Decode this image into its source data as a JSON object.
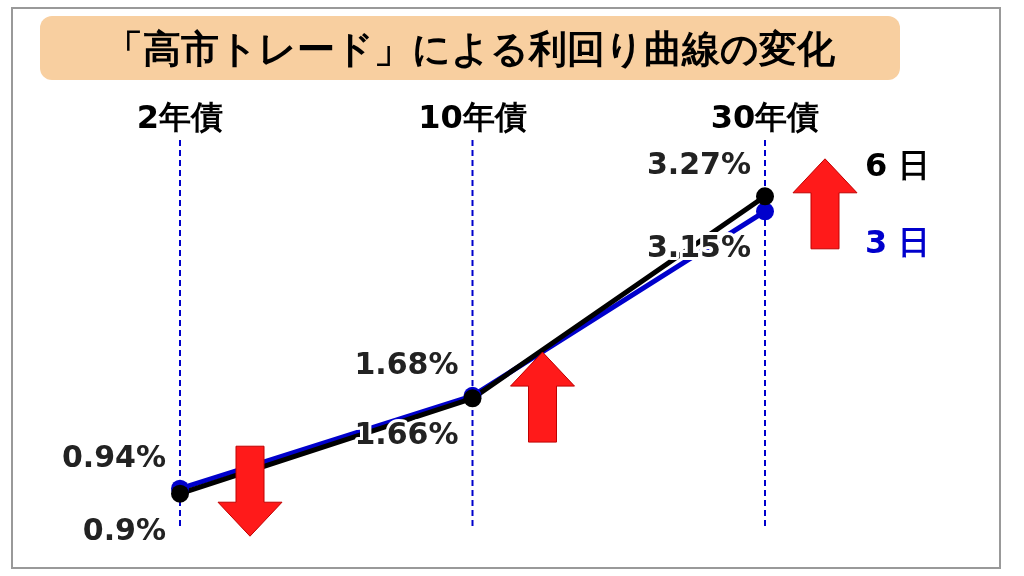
{
  "chart_data": {
    "type": "line",
    "title": "「高市トレード」による利回り曲線の変化",
    "categories": [
      "2年債",
      "10年債",
      "30年債"
    ],
    "series": [
      {
        "name": "3 日",
        "color": "#0000cc",
        "values": [
          0.94,
          1.68,
          3.15
        ],
        "value_labels": [
          "0.94%",
          "1.68%",
          "3.15%"
        ]
      },
      {
        "name": "6 日",
        "color": "#000000",
        "values": [
          0.9,
          1.66,
          3.27
        ],
        "value_labels": [
          "0.9%",
          "1.66%",
          "3.27%"
        ]
      }
    ],
    "marker": "circle",
    "grid": "x",
    "legend": false
  }
}
